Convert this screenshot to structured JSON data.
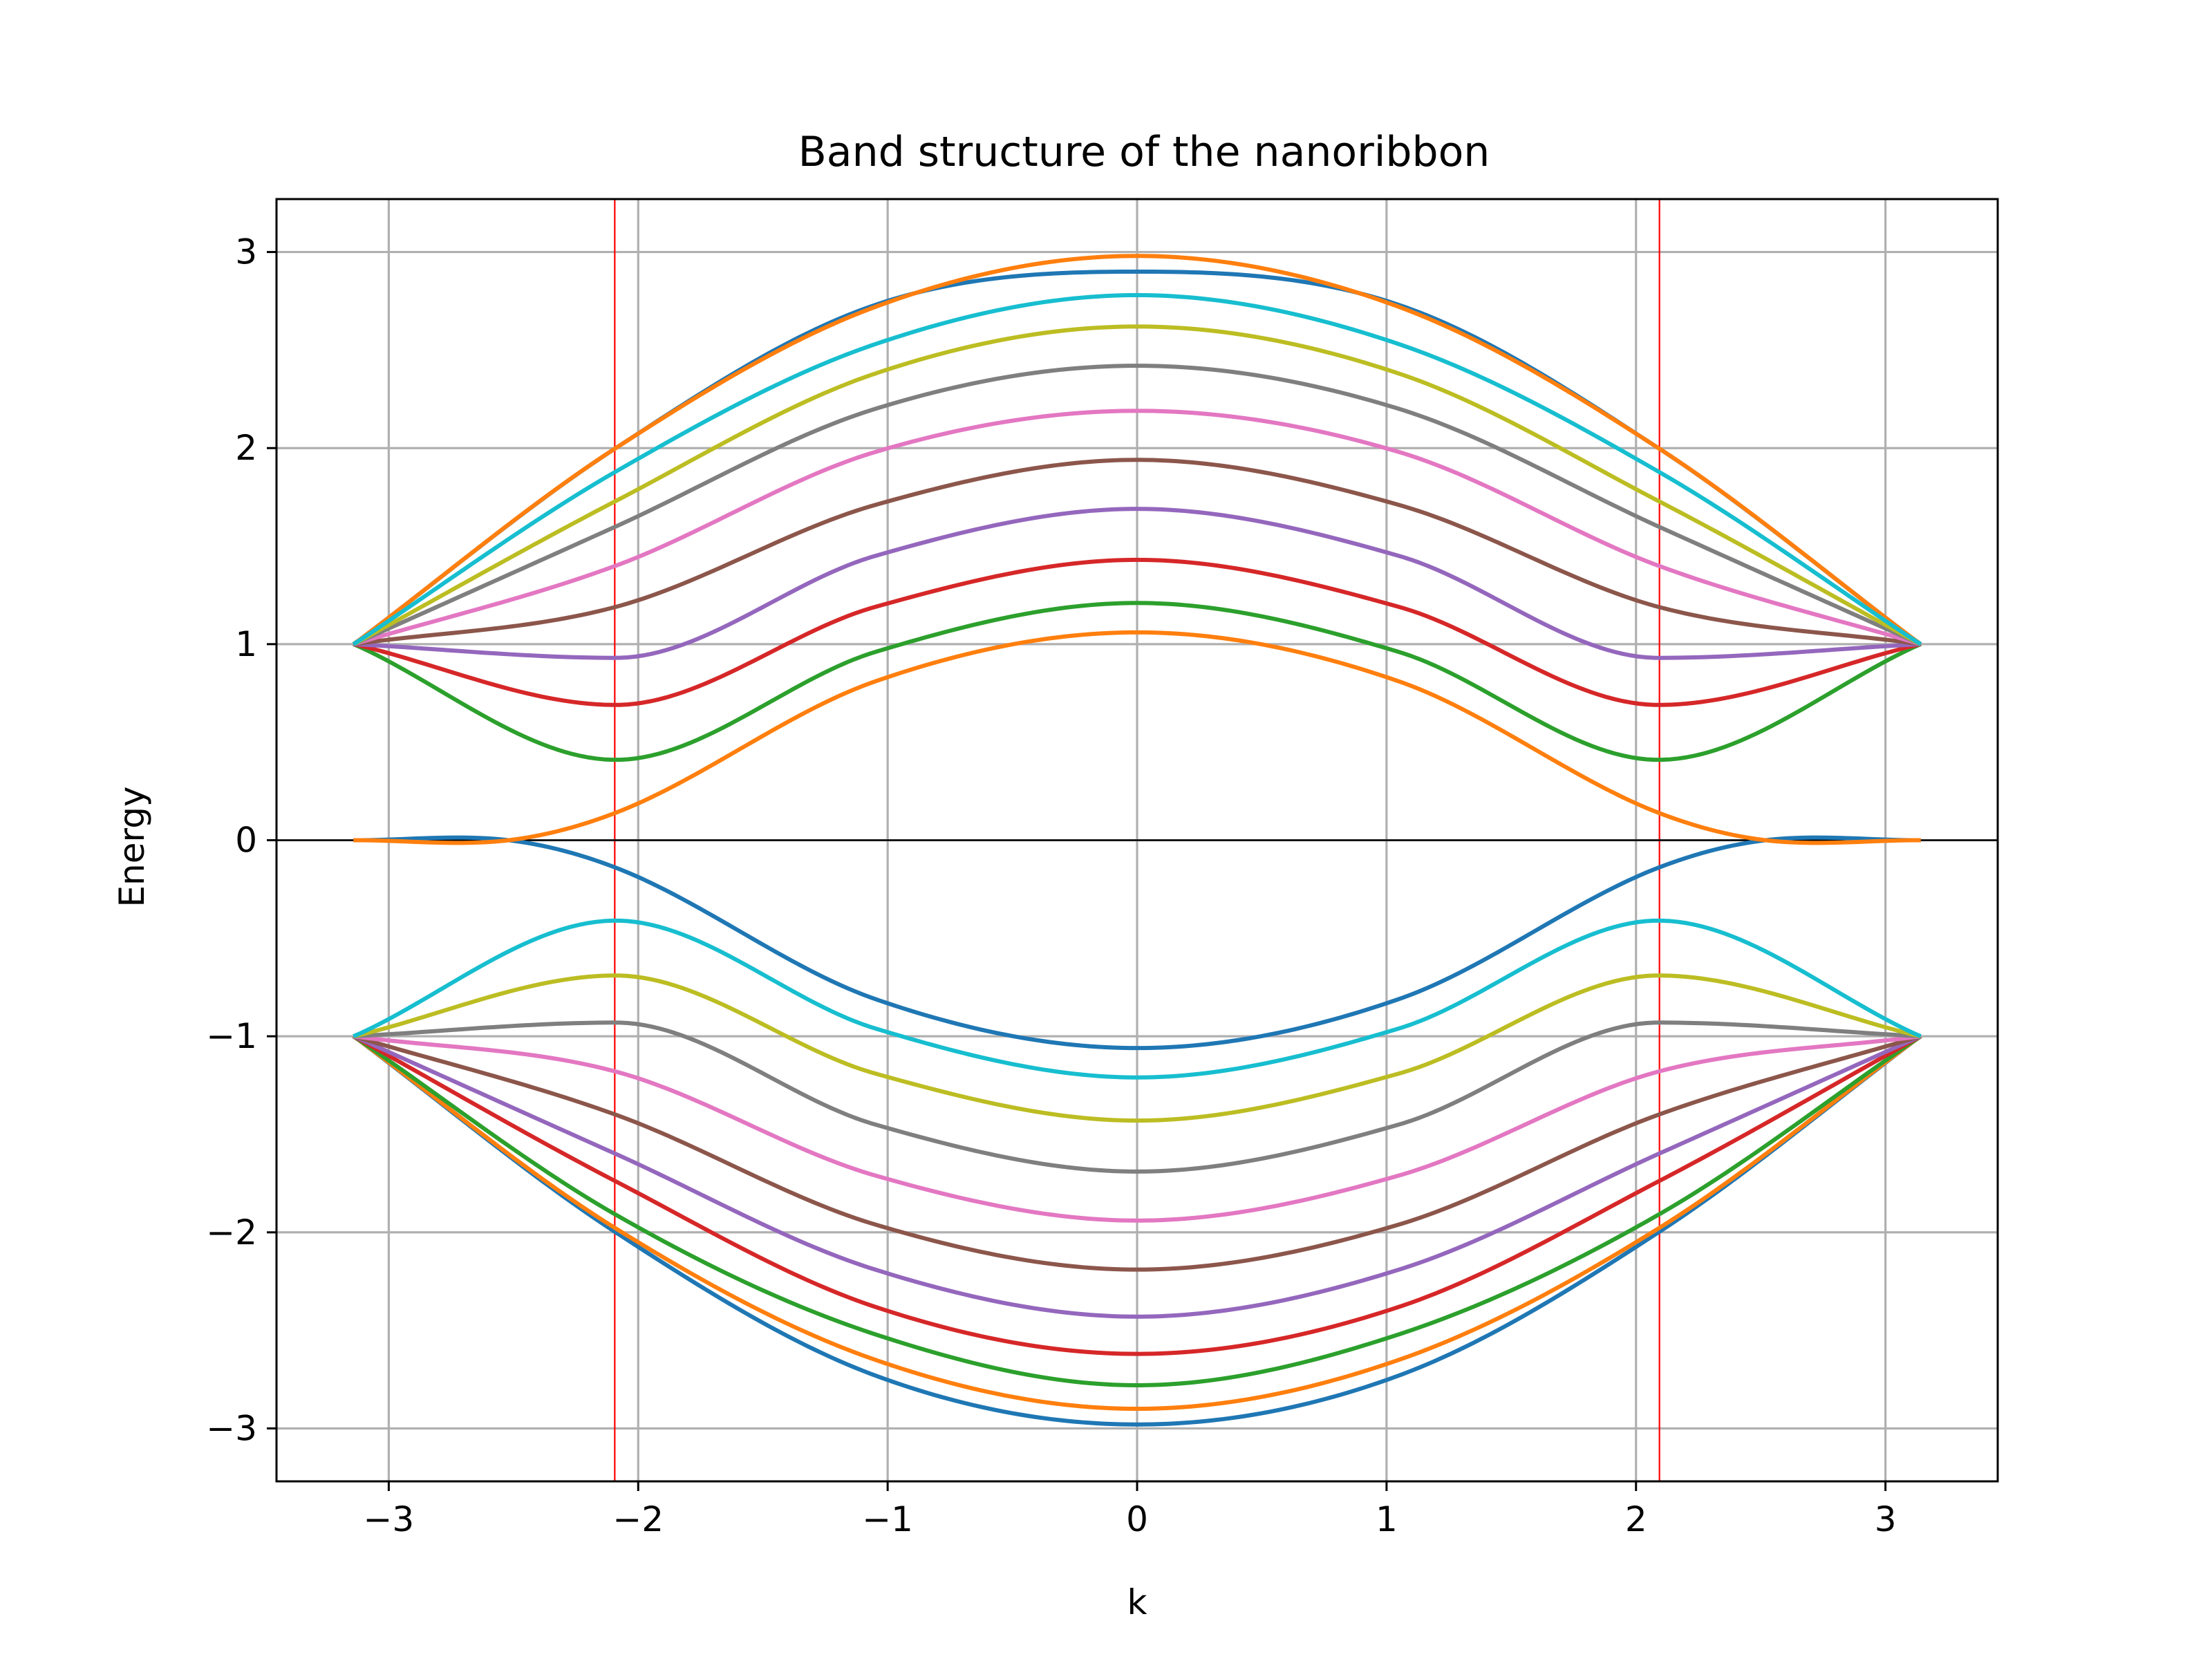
{
  "chart_data": {
    "type": "line",
    "title": "Band structure of the nanoribbon",
    "xlabel": "k",
    "ylabel": "Energy",
    "xlim": [
      -3.45,
      3.45
    ],
    "ylim": [
      -3.27,
      3.27
    ],
    "xticks": [
      -3,
      -2,
      -1,
      0,
      1,
      2,
      3
    ],
    "yticks": [
      -3,
      -2,
      -1,
      0,
      1,
      2,
      3
    ],
    "xtick_labels": [
      "−3",
      "−2",
      "−1",
      "0",
      "1",
      "2",
      "3"
    ],
    "ytick_labels": [
      "−3",
      "−2",
      "−1",
      "0",
      "1",
      "2",
      "3"
    ],
    "grid": true,
    "k_range": [
      -3.14159,
      3.14159
    ],
    "vertical_lines": {
      "x": [
        -2.094,
        2.094
      ],
      "color": "#ff0000"
    },
    "horizontal_line": {
      "y": 0,
      "color": "#000000"
    },
    "band_pairs": [
      {
        "color": "#1f77b4",
        "k_samples": [
          -3.14,
          -2.09,
          -1.05,
          0,
          1.05,
          2.09,
          3.14
        ],
        "upper": [
          1.0,
          2.0,
          2.73,
          2.9,
          2.73,
          2.0,
          1.0
        ],
        "lower": [
          -1.0,
          -2.0,
          -2.73,
          -2.98,
          -2.73,
          -2.0,
          -1.0
        ]
      },
      {
        "color": "#ff7f0e",
        "k_samples": [
          -3.14,
          -2.09,
          -1.05,
          0,
          1.05,
          2.09,
          3.14
        ],
        "upper": [
          1.0,
          2.0,
          2.72,
          2.98,
          2.72,
          2.0,
          1.0
        ],
        "lower": [
          -1.0,
          -1.98,
          -2.65,
          -2.9,
          -2.65,
          -1.98,
          -1.0
        ]
      },
      {
        "color": "#2ca02c",
        "k_samples": [
          -3.14,
          -2.09,
          -1.05,
          0,
          1.05,
          2.09,
          3.14
        ],
        "upper": [
          1.0,
          0.41,
          0.96,
          1.21,
          0.96,
          0.41,
          1.0
        ],
        "lower": [
          -1.0,
          -1.91,
          -2.52,
          -2.78,
          -2.52,
          -1.91,
          -1.0
        ]
      },
      {
        "color": "#d62728",
        "k_samples": [
          -3.14,
          -2.09,
          -1.05,
          0,
          1.05,
          2.09,
          3.14
        ],
        "upper": [
          1.0,
          0.69,
          1.19,
          1.43,
          1.19,
          0.69,
          1.0
        ],
        "lower": [
          -1.0,
          -1.74,
          -2.38,
          -2.62,
          -2.38,
          -1.74,
          -1.0
        ]
      },
      {
        "color": "#9467bd",
        "k_samples": [
          -3.14,
          -2.09,
          -1.05,
          0,
          1.05,
          2.09,
          3.14
        ],
        "upper": [
          1.0,
          0.93,
          1.45,
          1.69,
          1.45,
          0.93,
          1.0
        ],
        "lower": [
          -1.0,
          -1.6,
          -2.19,
          -2.43,
          -2.19,
          -1.6,
          -1.0
        ]
      },
      {
        "color": "#8c564b",
        "k_samples": [
          -3.14,
          -2.09,
          -1.05,
          0,
          1.05,
          2.09,
          3.14
        ],
        "upper": [
          1.0,
          1.19,
          1.71,
          1.94,
          1.71,
          1.19,
          1.0
        ],
        "lower": [
          -1.0,
          -1.4,
          -1.96,
          -2.19,
          -1.96,
          -1.4,
          -1.0
        ]
      },
      {
        "color": "#e377c2",
        "k_samples": [
          -3.14,
          -2.09,
          -1.05,
          0,
          1.05,
          2.09,
          3.14
        ],
        "upper": [
          1.0,
          1.4,
          1.98,
          2.19,
          1.98,
          1.4,
          1.0
        ],
        "lower": [
          -1.0,
          -1.18,
          -1.71,
          -1.94,
          -1.71,
          -1.18,
          -1.0
        ]
      },
      {
        "color": "#7f7f7f",
        "k_samples": [
          -3.14,
          -2.09,
          -1.05,
          0,
          1.05,
          2.09,
          3.14
        ],
        "upper": [
          1.0,
          1.6,
          2.2,
          2.42,
          2.2,
          1.6,
          1.0
        ],
        "lower": [
          -1.0,
          -0.93,
          -1.45,
          -1.69,
          -1.45,
          -0.93,
          -1.0
        ]
      },
      {
        "color": "#bcbd22",
        "k_samples": [
          -3.14,
          -2.09,
          -1.05,
          0,
          1.05,
          2.09,
          3.14
        ],
        "upper": [
          1.0,
          1.73,
          2.38,
          2.62,
          2.38,
          1.73,
          1.0
        ],
        "lower": [
          -1.0,
          -0.69,
          -1.19,
          -1.43,
          -1.19,
          -0.69,
          -1.0
        ]
      },
      {
        "color": "#17becf",
        "k_samples": [
          -3.14,
          -2.09,
          -1.05,
          0,
          1.05,
          2.09,
          3.14
        ],
        "upper": [
          1.0,
          1.88,
          2.53,
          2.78,
          2.53,
          1.88,
          1.0
        ],
        "lower": [
          -1.0,
          -0.41,
          -0.96,
          -1.21,
          -0.96,
          -0.41,
          -1.0
        ]
      },
      {
        "color": "#ff7f0e",
        "k_samples": [
          -3.14,
          -2.5,
          -2.09,
          -1.05,
          0,
          1.05,
          2.09,
          2.5,
          3.14
        ],
        "upper": [
          0.0,
          0.003,
          0.14,
          0.81,
          1.06,
          0.81,
          0.14,
          0.003,
          0.0
        ],
        "note_lower_color": "#1f77b4",
        "lower": [
          0.0,
          -0.003,
          -0.14,
          -0.81,
          -1.06,
          -0.81,
          -0.14,
          -0.003,
          0.0
        ]
      }
    ]
  }
}
